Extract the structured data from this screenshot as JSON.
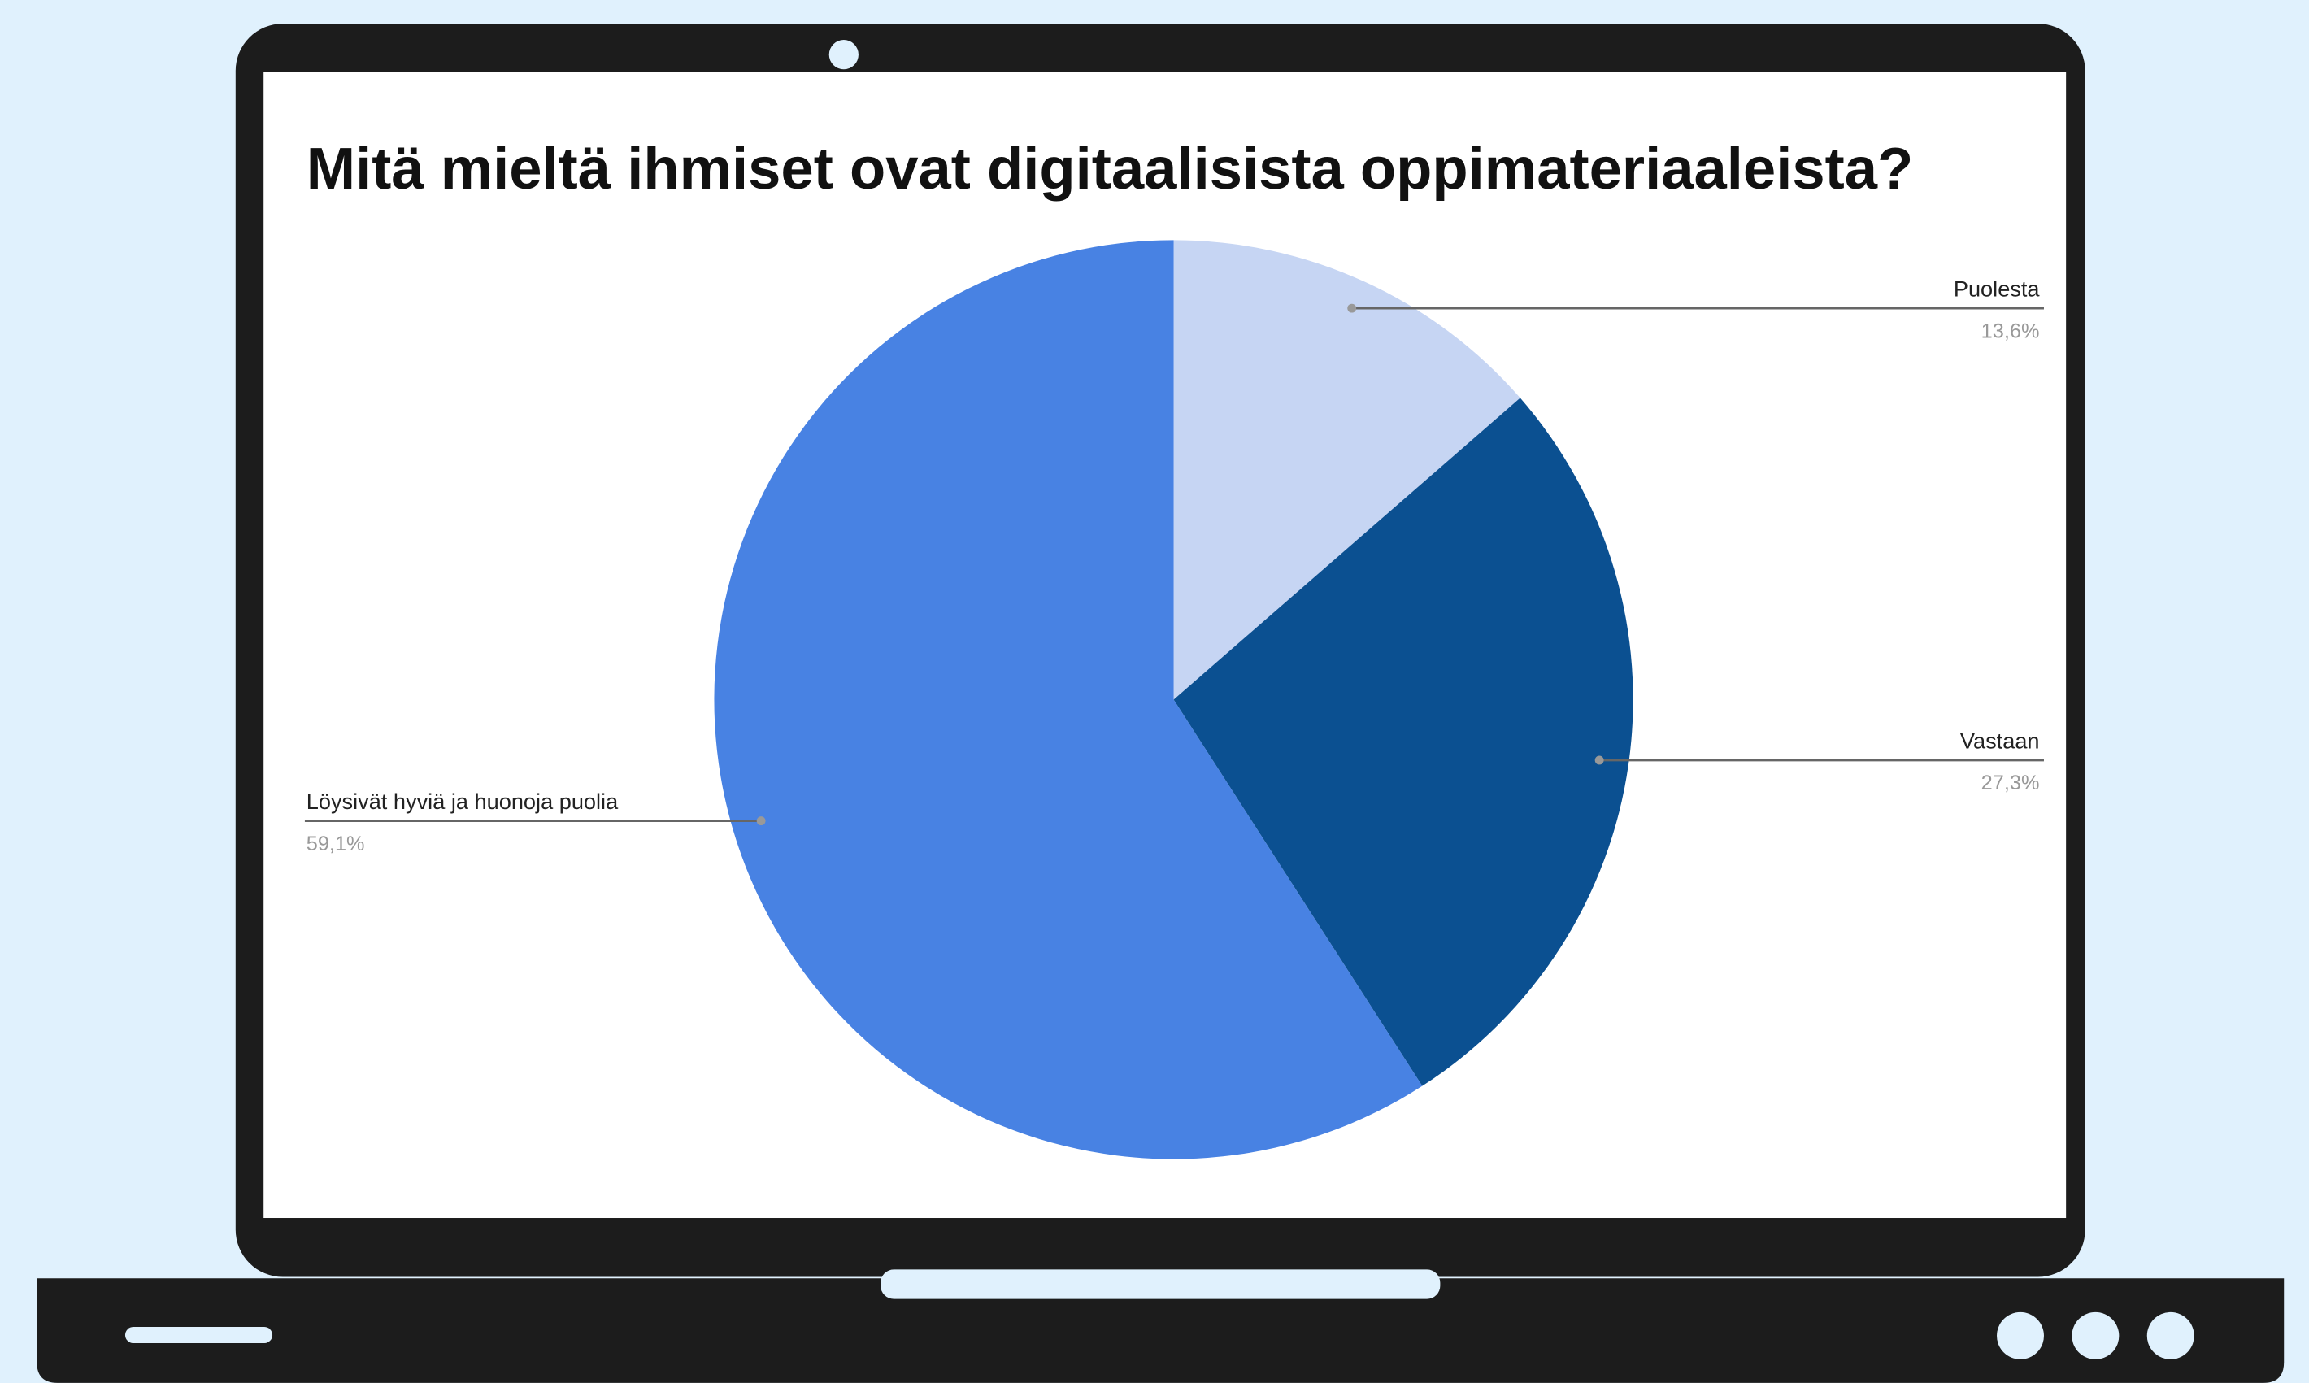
{
  "chart_data": {
    "type": "pie",
    "title": "Mitä mieltä ihmiset ovat digitaalisista oppimateriaaleista?",
    "categories": [
      "Puolesta",
      "Vastaan",
      "Löysivät hyviä ja huonoja puolia"
    ],
    "values": [
      13.6,
      27.3,
      59.1
    ],
    "value_labels": [
      "13,6%",
      "27,3%",
      "59,1%"
    ],
    "colors": [
      "#c6d5f3",
      "#0b5091",
      "#4882e3"
    ]
  }
}
